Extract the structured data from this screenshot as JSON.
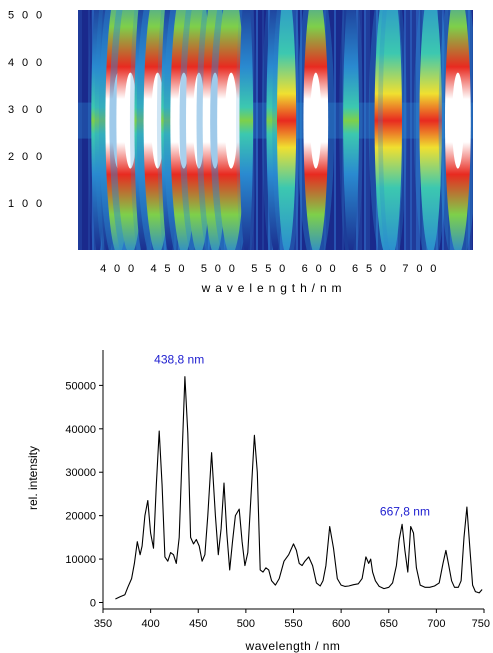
{
  "chart_data": [
    {
      "type": "heatmap",
      "title": "",
      "xlabel": "w a v e l e n g t h   /   n m",
      "ylabel": "",
      "xlim": [
        360,
        752
      ],
      "ylim": [
        0,
        510
      ],
      "xticks": [
        400,
        450,
        500,
        550,
        600,
        650,
        700
      ],
      "xtick_labels": [
        "4 0 0",
        "4 5 0",
        "5 0 0",
        "5 5 0",
        "6 0 0",
        "6 5 0",
        "7 0 0"
      ],
      "yticks": [
        100,
        200,
        300,
        400,
        500
      ],
      "ytick_labels": [
        "1 0 0",
        "2 0 0",
        "3 0 0",
        "4 0 0",
        "5 0 0"
      ],
      "colors": [
        "#1a2a8c",
        "#2a8ad0",
        "#3cc8b0",
        "#7ed04a",
        "#f0e030",
        "#e82a20",
        "#ffffff"
      ],
      "center_y": 275,
      "bands": [
        {
          "wavelength": 380,
          "intensity": 0.35
        },
        {
          "wavelength": 390,
          "intensity": 0.55
        },
        {
          "wavelength": 400,
          "intensity": 0.9
        },
        {
          "wavelength": 412,
          "intensity": 1.0
        },
        {
          "wavelength": 425,
          "intensity": 0.55
        },
        {
          "wavelength": 439,
          "intensity": 1.0
        },
        {
          "wavelength": 451,
          "intensity": 0.5
        },
        {
          "wavelength": 465,
          "intensity": 0.95
        },
        {
          "wavelength": 480,
          "intensity": 0.9
        },
        {
          "wavelength": 496,
          "intensity": 0.85
        },
        {
          "wavelength": 512,
          "intensity": 1.0
        },
        {
          "wavelength": 527,
          "intensity": 0.35
        },
        {
          "wavelength": 556,
          "intensity": 0.55
        },
        {
          "wavelength": 567,
          "intensity": 0.6
        },
        {
          "wavelength": 596,
          "intensity": 0.85
        },
        {
          "wavelength": 631,
          "intensity": 0.45
        },
        {
          "wavelength": 666,
          "intensity": 0.8
        },
        {
          "wavelength": 672,
          "intensity": 0.6
        },
        {
          "wavelength": 710,
          "intensity": 0.75
        },
        {
          "wavelength": 737,
          "intensity": 0.9
        }
      ]
    },
    {
      "type": "line",
      "title": "",
      "xlabel": "wavelength / nm",
      "ylabel": "rel. intensity",
      "xlim": [
        350,
        750
      ],
      "ylim": [
        -1500,
        57000
      ],
      "xticks": [
        350,
        400,
        450,
        500,
        550,
        600,
        650,
        700,
        750
      ],
      "xtick_labels": [
        "350",
        "400",
        "450",
        "500",
        "550",
        "600",
        "650",
        "700",
        "750"
      ],
      "yticks": [
        0,
        10000,
        20000,
        30000,
        40000,
        50000
      ],
      "ytick_labels": [
        "0",
        "10000",
        "20000",
        "30000",
        "40000",
        "50000"
      ],
      "series": [
        {
          "x": [
            363,
            368,
            373,
            376,
            380,
            383,
            386,
            389,
            391,
            394,
            397,
            400,
            403,
            406,
            409,
            412,
            415,
            418,
            421,
            424,
            427,
            430,
            433,
            436,
            439,
            442,
            445,
            448,
            451,
            454,
            457,
            460,
            464,
            468,
            471,
            474,
            477,
            480,
            483,
            486,
            489,
            493,
            496,
            499,
            502,
            506,
            509,
            512,
            515,
            518,
            521,
            524,
            527,
            531,
            535,
            540,
            545,
            550,
            553,
            556,
            559,
            562,
            566,
            570,
            574,
            578,
            581,
            584,
            588,
            592,
            596,
            600,
            604,
            608,
            613,
            618,
            622,
            626,
            629,
            631,
            633,
            636,
            640,
            645,
            650,
            654,
            658,
            661,
            664,
            667,
            670,
            673,
            676,
            679,
            683,
            688,
            693,
            698,
            703,
            707,
            710,
            713,
            716,
            719,
            723,
            726,
            729,
            732,
            735,
            738,
            741,
            745,
            748
          ],
          "y": [
            800,
            1300,
            1800,
            3500,
            5500,
            9000,
            14000,
            11000,
            13000,
            20000,
            23500,
            16000,
            12500,
            27000,
            39500,
            27000,
            10500,
            9500,
            11500,
            11000,
            9000,
            15000,
            34000,
            52000,
            39000,
            15000,
            13500,
            14500,
            13000,
            9500,
            11000,
            20000,
            34500,
            20000,
            11000,
            17000,
            27500,
            16000,
            7500,
            14000,
            20000,
            21500,
            14000,
            8500,
            11500,
            27000,
            38500,
            30000,
            7500,
            7000,
            8000,
            7500,
            5000,
            4000,
            5500,
            9500,
            11000,
            13500,
            12000,
            9000,
            8500,
            9500,
            10500,
            8500,
            4500,
            3800,
            5000,
            8500,
            17500,
            12500,
            5500,
            4000,
            3700,
            3800,
            4100,
            4300,
            5500,
            10500,
            9000,
            10000,
            7000,
            5000,
            3700,
            3200,
            3500,
            4500,
            8500,
            14500,
            18000,
            12000,
            7000,
            17500,
            16000,
            8000,
            4000,
            3500,
            3500,
            3800,
            4500,
            9000,
            12000,
            8500,
            5000,
            3500,
            3500,
            5000,
            15000,
            22000,
            13000,
            4000,
            2500,
            2200,
            3000
          ]
        }
      ],
      "annotations": [
        {
          "text": "438,8 nm",
          "x": 430,
          "y": 55000
        },
        {
          "text": "667,8 nm",
          "x": 667,
          "y": 20000
        }
      ]
    }
  ]
}
